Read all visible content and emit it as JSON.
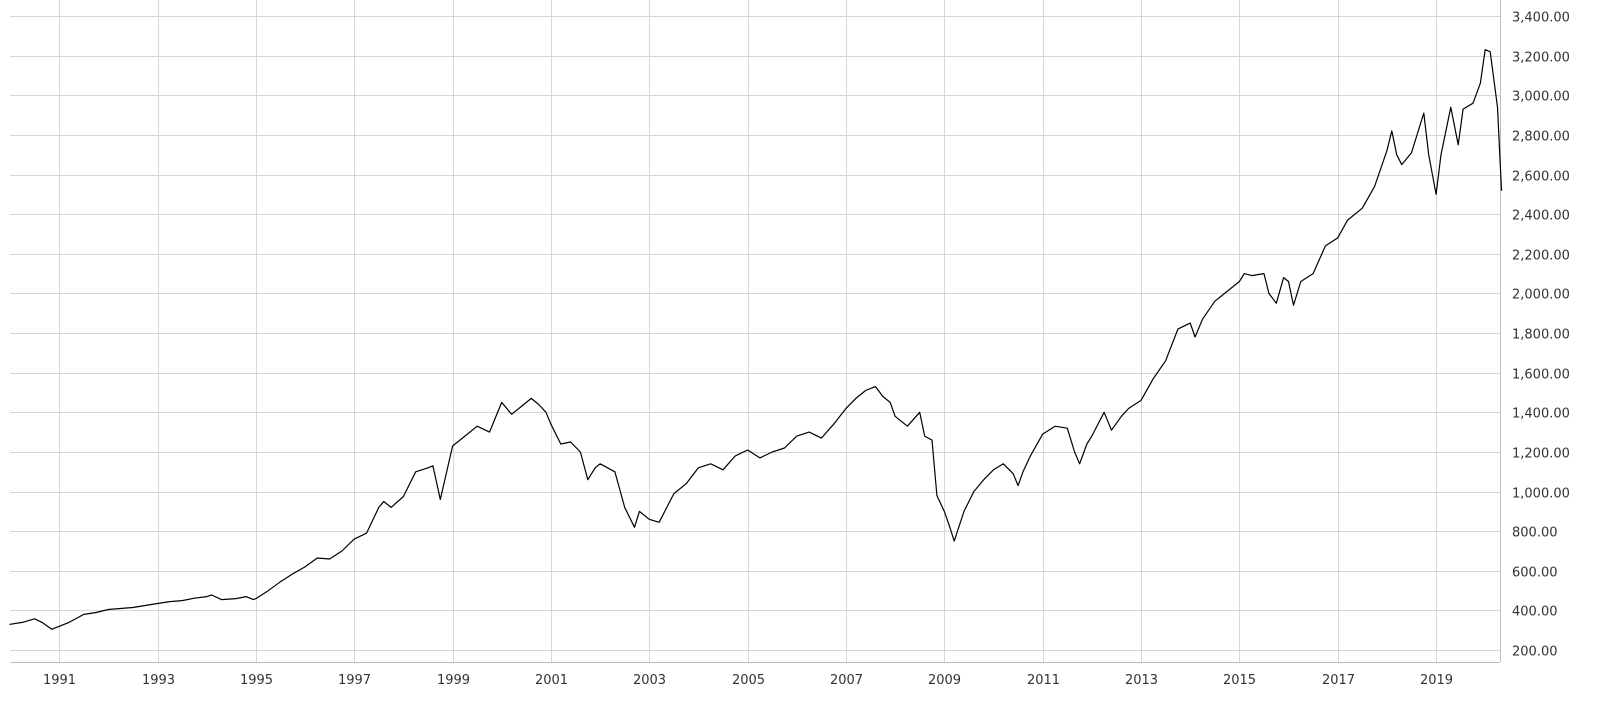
{
  "chart_data": {
    "type": "line",
    "title": "",
    "xlabel": "",
    "ylabel": "",
    "xlim": [
      1990.0,
      2020.3
    ],
    "ylim": [
      140,
      3400
    ],
    "grid": true,
    "y_ticks": [
      200,
      400,
      600,
      800,
      1000,
      1200,
      1400,
      1600,
      1800,
      2000,
      2200,
      2400,
      2600,
      2800,
      3000,
      3200,
      3400
    ],
    "y_tick_labels": [
      "200.00",
      "400.00",
      "600.00",
      "800.00",
      "1,000.00",
      "1,200.00",
      "1,400.00",
      "1,600.00",
      "1,800.00",
      "2,000.00",
      "2,200.00",
      "2,400.00",
      "2,600.00",
      "2,800.00",
      "3,000.00",
      "3,200.00",
      "3,400.00"
    ],
    "x_ticks": [
      1991,
      1993,
      1995,
      1997,
      1999,
      2001,
      2003,
      2005,
      2007,
      2009,
      2011,
      2013,
      2015,
      2017,
      2019
    ],
    "x_tick_labels": [
      "1991",
      "1993",
      "1995",
      "1997",
      "1999",
      "2001",
      "2003",
      "2005",
      "2007",
      "2009",
      "2011",
      "2013",
      "2015",
      "2017",
      "2019"
    ],
    "series": [
      {
        "color": "#000000",
        "x": [
          1990.0,
          1990.25,
          1990.5,
          1990.65,
          1990.85,
          1991.0,
          1991.2,
          1991.5,
          1991.75,
          1992.0,
          1992.5,
          1993.0,
          1993.25,
          1993.5,
          1993.75,
          1994.0,
          1994.1,
          1994.3,
          1994.6,
          1994.8,
          1994.95,
          1995.0,
          1995.25,
          1995.5,
          1995.75,
          1996.0,
          1996.25,
          1996.5,
          1996.75,
          1997.0,
          1997.25,
          1997.5,
          1997.6,
          1997.75,
          1998.0,
          1998.25,
          1998.5,
          1998.6,
          1998.75,
          1999.0,
          1999.25,
          1999.5,
          1999.75,
          2000.0,
          2000.2,
          2000.4,
          2000.6,
          2000.75,
          2000.9,
          2001.0,
          2001.2,
          2001.4,
          2001.6,
          2001.75,
          2001.9,
          2002.0,
          2002.3,
          2002.5,
          2002.7,
          2002.8,
          2003.0,
          2003.2,
          2003.5,
          2003.75,
          2004.0,
          2004.25,
          2004.5,
          2004.75,
          2005.0,
          2005.25,
          2005.5,
          2005.75,
          2006.0,
          2006.25,
          2006.5,
          2006.75,
          2007.0,
          2007.2,
          2007.4,
          2007.6,
          2007.75,
          2007.9,
          2008.0,
          2008.25,
          2008.5,
          2008.6,
          2008.75,
          2008.85,
          2009.0,
          2009.1,
          2009.2,
          2009.4,
          2009.6,
          2009.8,
          2010.0,
          2010.2,
          2010.4,
          2010.5,
          2010.6,
          2010.75,
          2011.0,
          2011.25,
          2011.5,
          2011.65,
          2011.75,
          2011.9,
          2012.0,
          2012.25,
          2012.4,
          2012.6,
          2012.75,
          2013.0,
          2013.25,
          2013.5,
          2013.75,
          2014.0,
          2014.1,
          2014.25,
          2014.5,
          2014.75,
          2015.0,
          2015.1,
          2015.25,
          2015.5,
          2015.6,
          2015.75,
          2015.9,
          2016.0,
          2016.1,
          2016.25,
          2016.5,
          2016.75,
          2017.0,
          2017.2,
          2017.5,
          2017.75,
          2018.0,
          2018.1,
          2018.2,
          2018.3,
          2018.5,
          2018.75,
          2018.85,
          2019.0,
          2019.1,
          2019.2,
          2019.3,
          2019.45,
          2019.55,
          2019.75,
          2019.9,
          2020.0,
          2020.1,
          2020.25,
          2020.33
        ],
        "y": [
          330,
          340,
          358,
          340,
          305,
          320,
          340,
          380,
          390,
          405,
          415,
          435,
          445,
          450,
          462,
          470,
          478,
          455,
          460,
          470,
          455,
          460,
          500,
          545,
          585,
          620,
          665,
          660,
          700,
          760,
          790,
          920,
          950,
          920,
          975,
          1100,
          1120,
          1130,
          960,
          1230,
          1280,
          1330,
          1300,
          1450,
          1390,
          1430,
          1470,
          1440,
          1400,
          1340,
          1240,
          1250,
          1200,
          1060,
          1120,
          1140,
          1100,
          920,
          820,
          900,
          860,
          845,
          990,
          1040,
          1120,
          1140,
          1110,
          1180,
          1210,
          1170,
          1200,
          1220,
          1280,
          1300,
          1270,
          1340,
          1420,
          1470,
          1510,
          1530,
          1480,
          1450,
          1380,
          1330,
          1400,
          1280,
          1260,
          980,
          900,
          830,
          750,
          900,
          1000,
          1060,
          1110,
          1140,
          1090,
          1030,
          1100,
          1180,
          1290,
          1330,
          1320,
          1200,
          1140,
          1240,
          1280,
          1400,
          1310,
          1380,
          1420,
          1460,
          1570,
          1660,
          1820,
          1850,
          1780,
          1870,
          1960,
          2010,
          2060,
          2100,
          2090,
          2100,
          2000,
          1950,
          2080,
          2060,
          1940,
          2060,
          2100,
          2240,
          2280,
          2370,
          2430,
          2540,
          2720,
          2820,
          2700,
          2650,
          2710,
          2910,
          2700,
          2500,
          2700,
          2820,
          2940,
          2750,
          2930,
          2960,
          3060,
          3230,
          3220,
          2940,
          2520
        ]
      }
    ]
  }
}
